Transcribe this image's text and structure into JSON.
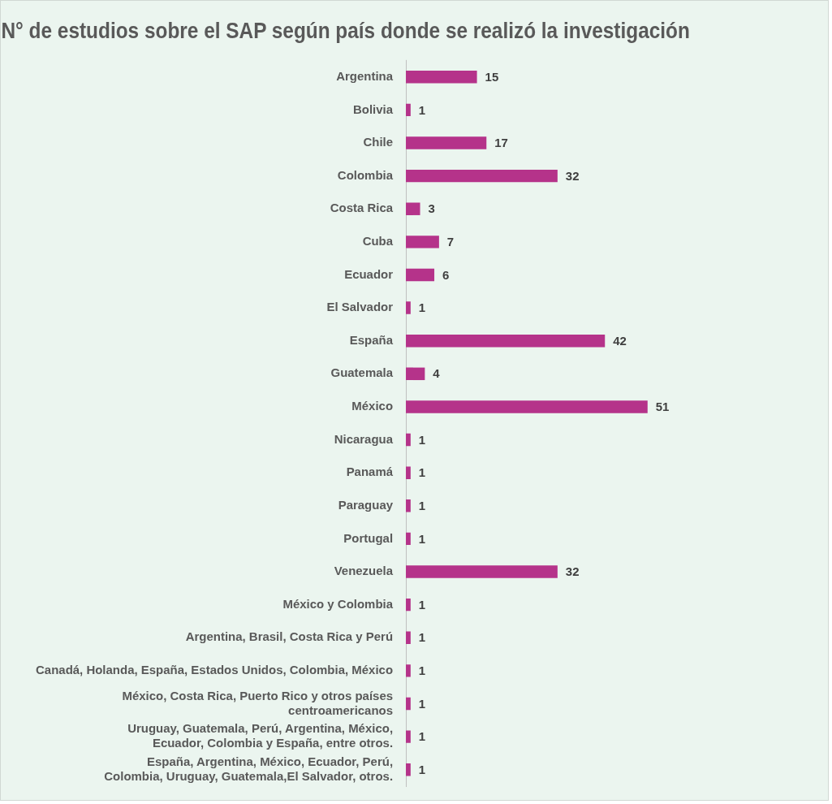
{
  "chart_data": {
    "type": "bar",
    "orientation": "horizontal",
    "title": "N° de estudios sobre el SAP según país donde se realizó la investigación",
    "categories": [
      "Argentina",
      "Bolivia",
      "Chile",
      "Colombia",
      "Costa Rica",
      "Cuba",
      "Ecuador",
      "El Salvador",
      "España",
      "Guatemala",
      "México",
      "Nicaragua",
      "Panamá",
      "Paraguay",
      "Portugal",
      "Venezuela",
      "México y Colombia",
      "Argentina, Brasil, Costa Rica y Perú",
      "Canadá, Holanda, España, Estados Unidos, Colombia, México",
      "México, Costa Rica, Puerto Rico y otros países centroamericanos",
      "Uruguay, Guatemala, Perú, Argentina, México, Ecuador, Colombia y España, entre otros.",
      "España, Argentina, México, Ecuador, Perú, Colombia, Uruguay, Guatemala,El Salvador, otros."
    ],
    "values": [
      15,
      1,
      17,
      32,
      3,
      7,
      6,
      1,
      42,
      4,
      51,
      1,
      1,
      1,
      1,
      32,
      1,
      1,
      1,
      1,
      1,
      1
    ],
    "color": "#b5338a",
    "data_labels": true,
    "legend": false
  }
}
